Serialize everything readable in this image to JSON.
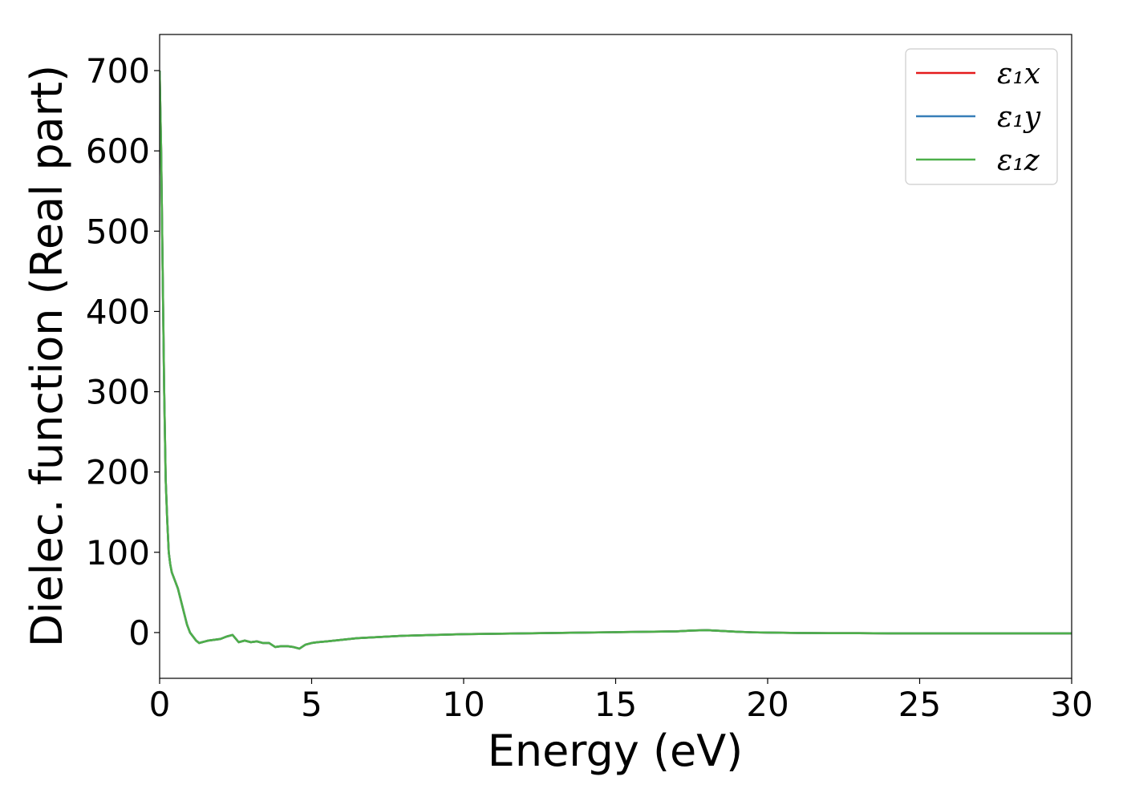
{
  "chart_data": {
    "type": "line",
    "title": "",
    "xlabel": "Energy (eV)",
    "ylabel": "Dielec. function (Real part)",
    "xlim": [
      0,
      30
    ],
    "ylim": [
      -57,
      745
    ],
    "xticks": [
      0,
      5,
      10,
      15,
      20,
      25,
      30
    ],
    "xtick_labels": [
      "0",
      "5",
      "10",
      "15",
      "20",
      "25",
      "30"
    ],
    "yticks": [
      0,
      100,
      200,
      300,
      400,
      500,
      600,
      700
    ],
    "ytick_labels": [
      "0",
      "100",
      "200",
      "300",
      "400",
      "500",
      "600",
      "700"
    ],
    "grid": false,
    "legend_position": "top-right",
    "series": [
      {
        "name": "ε₁x",
        "color": "#e41a1c",
        "x": [
          0.0,
          0.05,
          0.1,
          0.15,
          0.2,
          0.25,
          0.3,
          0.35,
          0.4,
          0.5,
          0.6,
          0.7,
          0.8,
          0.9,
          1.0,
          1.1,
          1.2,
          1.3,
          1.4,
          1.6,
          1.8,
          2.0,
          2.2,
          2.4,
          2.6,
          2.8,
          3.0,
          3.2,
          3.4,
          3.6,
          3.8,
          4.0,
          4.2,
          4.4,
          4.6,
          4.8,
          5.0,
          5.2,
          5.5,
          6.0,
          6.5,
          7.0,
          8.0,
          9.0,
          10.0,
          11.0,
          12.0,
          13.0,
          14.0,
          15.0,
          16.0,
          17.0,
          17.5,
          18.0,
          18.5,
          19.0,
          19.5,
          20.0,
          21.0,
          22.0,
          23.0,
          24.0,
          25.0,
          26.0,
          27.0,
          28.0,
          29.0,
          30.0
        ],
        "y": [
          700,
          600,
          450,
          300,
          190,
          140,
          100,
          85,
          75,
          65,
          55,
          40,
          25,
          10,
          0,
          -5,
          -10,
          -13,
          -12,
          -10,
          -9,
          -8,
          -5,
          -3,
          -12,
          -10,
          -12,
          -11,
          -13,
          -13,
          -18,
          -17,
          -17,
          -18,
          -20,
          -15,
          -13,
          -12,
          -11,
          -9,
          -7,
          -6,
          -4,
          -3,
          -2,
          -1.5,
          -1,
          -0.5,
          0,
          0.5,
          1,
          1.5,
          2.5,
          3,
          2,
          1,
          0.3,
          0,
          -0.5,
          -0.8,
          -0.8,
          -1,
          -1,
          -1,
          -1,
          -1,
          -1,
          -1
        ]
      },
      {
        "name": "ε₁y",
        "color": "#377eb8",
        "x": [
          0.0,
          0.05,
          0.1,
          0.15,
          0.2,
          0.25,
          0.3,
          0.35,
          0.4,
          0.5,
          0.6,
          0.7,
          0.8,
          0.9,
          1.0,
          1.1,
          1.2,
          1.3,
          1.4,
          1.6,
          1.8,
          2.0,
          2.2,
          2.4,
          2.6,
          2.8,
          3.0,
          3.2,
          3.4,
          3.6,
          3.8,
          4.0,
          4.2,
          4.4,
          4.6,
          4.8,
          5.0,
          5.2,
          5.5,
          6.0,
          6.5,
          7.0,
          8.0,
          9.0,
          10.0,
          11.0,
          12.0,
          13.0,
          14.0,
          15.0,
          16.0,
          17.0,
          17.5,
          18.0,
          18.5,
          19.0,
          19.5,
          20.0,
          21.0,
          22.0,
          23.0,
          24.0,
          25.0,
          26.0,
          27.0,
          28.0,
          29.0,
          30.0
        ],
        "y": [
          700,
          600,
          450,
          300,
          190,
          140,
          100,
          85,
          75,
          65,
          55,
          40,
          25,
          10,
          0,
          -5,
          -10,
          -13,
          -12,
          -10,
          -9,
          -8,
          -5,
          -3,
          -12,
          -10,
          -12,
          -11,
          -13,
          -13,
          -18,
          -17,
          -17,
          -18,
          -20,
          -15,
          -13,
          -12,
          -11,
          -9,
          -7,
          -6,
          -4,
          -3,
          -2,
          -1.5,
          -1,
          -0.5,
          0,
          0.5,
          1,
          1.5,
          2.5,
          3,
          2,
          1,
          0.3,
          0,
          -0.5,
          -0.8,
          -0.8,
          -1,
          -1,
          -1,
          -1,
          -1,
          -1,
          -1
        ]
      },
      {
        "name": "ε₁z",
        "color": "#4daf4a",
        "x": [
          0.0,
          0.05,
          0.1,
          0.15,
          0.2,
          0.25,
          0.3,
          0.35,
          0.4,
          0.5,
          0.6,
          0.7,
          0.8,
          0.9,
          1.0,
          1.1,
          1.2,
          1.3,
          1.4,
          1.6,
          1.8,
          2.0,
          2.2,
          2.4,
          2.6,
          2.8,
          3.0,
          3.2,
          3.4,
          3.6,
          3.8,
          4.0,
          4.2,
          4.4,
          4.6,
          4.8,
          5.0,
          5.2,
          5.5,
          6.0,
          6.5,
          7.0,
          8.0,
          9.0,
          10.0,
          11.0,
          12.0,
          13.0,
          14.0,
          15.0,
          16.0,
          17.0,
          17.5,
          18.0,
          18.5,
          19.0,
          19.5,
          20.0,
          21.0,
          22.0,
          23.0,
          24.0,
          25.0,
          26.0,
          27.0,
          28.0,
          29.0,
          30.0
        ],
        "y": [
          700,
          600,
          450,
          300,
          190,
          140,
          100,
          85,
          75,
          65,
          55,
          40,
          25,
          10,
          0,
          -5,
          -10,
          -13,
          -12,
          -10,
          -9,
          -8,
          -5,
          -3,
          -12,
          -10,
          -12,
          -11,
          -13,
          -13,
          -18,
          -17,
          -17,
          -18,
          -20,
          -15,
          -13,
          -12,
          -11,
          -9,
          -7,
          -6,
          -4,
          -3,
          -2,
          -1.5,
          -1,
          -0.5,
          0,
          0.5,
          1,
          1.5,
          2.5,
          3,
          2,
          1,
          0.3,
          0,
          -0.5,
          -0.8,
          -0.8,
          -1,
          -1,
          -1,
          -1,
          -1,
          -1,
          -1
        ]
      }
    ]
  }
}
